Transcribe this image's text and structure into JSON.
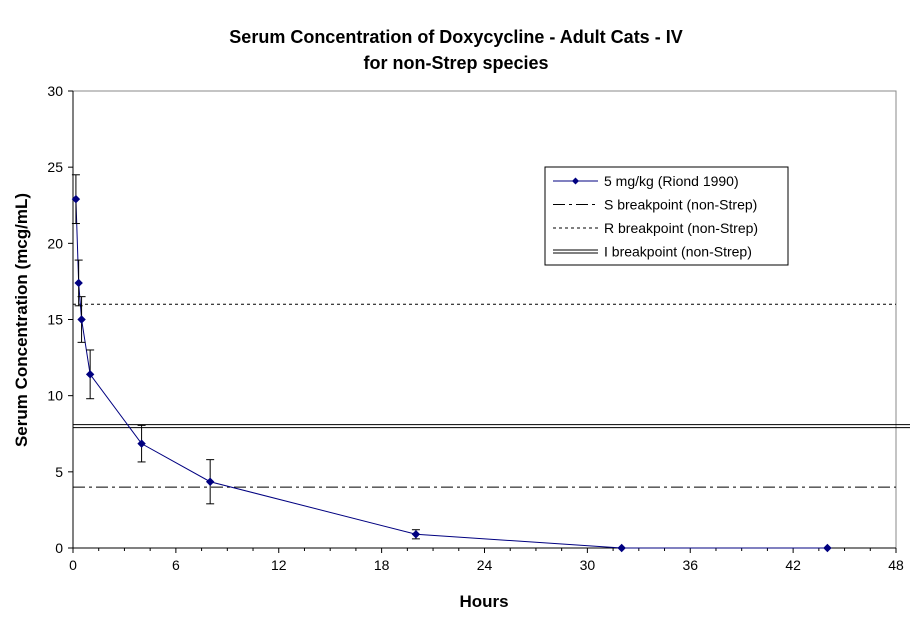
{
  "chart_data": {
    "type": "line",
    "title": "Serum Concentration of Doxycycline - Adult Cats - IV",
    "subtitle": "for non-Strep species",
    "xlabel": "Hours",
    "ylabel": "Serum Concentration (mcg/mL)",
    "xlim": [
      0,
      48
    ],
    "ylim": [
      0,
      30
    ],
    "xticks": [
      0,
      6,
      12,
      18,
      24,
      30,
      36,
      42,
      48
    ],
    "yticks": [
      0,
      5,
      10,
      15,
      20,
      25,
      30
    ],
    "grid": false,
    "legend_position": "top-right",
    "series": [
      {
        "name": "5 mg/kg (Riond 1990)",
        "color": "#000080",
        "marker": "diamond",
        "x": [
          0.17,
          0.33,
          0.5,
          1,
          4,
          8,
          20,
          32,
          44
        ],
        "y": [
          22.9,
          17.4,
          15.0,
          11.4,
          6.85,
          4.35,
          0.9,
          0.0,
          0.0
        ],
        "error": [
          1.6,
          1.5,
          1.5,
          1.6,
          1.2,
          1.45,
          0.3,
          0,
          0
        ]
      }
    ],
    "reference_lines": [
      {
        "name": "S breakpoint (non-Strep)",
        "y": 4,
        "style": "dashdot",
        "color": "#000000"
      },
      {
        "name": "R breakpoint (non-Strep)",
        "y": 16,
        "style": "dotted",
        "color": "#000000"
      },
      {
        "name": "I breakpoint (non-Strep)",
        "y": 8,
        "style": "double",
        "color": "#000000"
      }
    ]
  }
}
